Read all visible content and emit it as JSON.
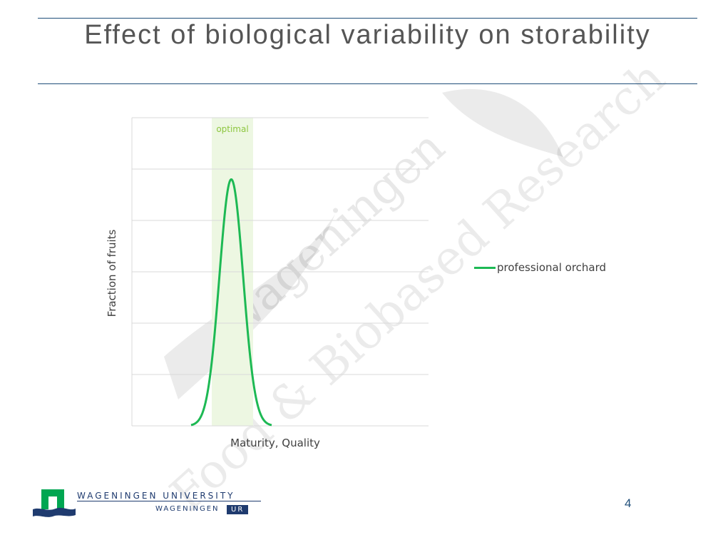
{
  "slide": {
    "title": "Effect of biological variability on storability",
    "page_number": "4"
  },
  "watermark": {
    "line1": "Wageningen",
    "line2": "Food & Biobased Research"
  },
  "footer": {
    "university": "WAGENINGEN UNIVERSITY",
    "ur_prefix": "WAGENINGEN",
    "ur_suffix": "UR"
  },
  "colors": {
    "rule": "#1f4e79",
    "series": "#1db954",
    "optimal_band": "#edf7e2",
    "optimal_label": "#8dc63f",
    "grid": "#d9d9d9",
    "logo_green": "#00a651",
    "logo_navy": "#1f3b6f"
  },
  "chart_data": {
    "type": "line",
    "title": "",
    "xlabel": "Maturity, Quality",
    "ylabel": "Fraction of fruits",
    "legend_position": "right",
    "grid": true,
    "gridline_count": 6,
    "optimal_band_label": "optimal",
    "series": [
      {
        "name": "professional orchard",
        "color": "#1db954",
        "distribution": "normal",
        "mean_fraction_of_x": 0.335,
        "sd_fraction_of_x": 0.04,
        "peak_fraction_of_y": 0.8
      }
    ]
  }
}
